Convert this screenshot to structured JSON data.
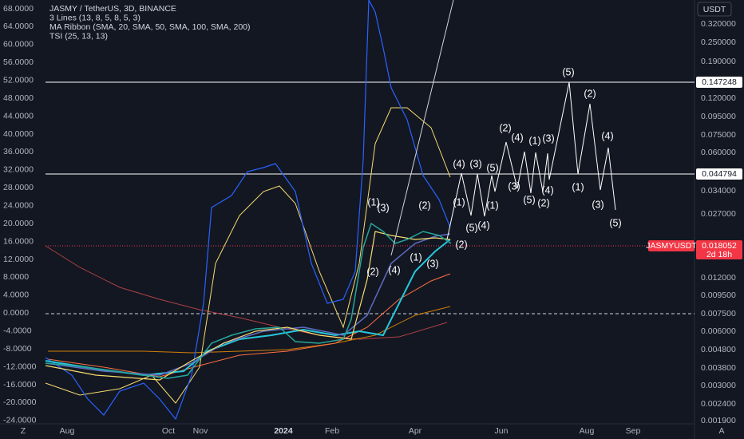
{
  "legend": [
    "JASMY / TetherUS, 3D, BINANCE",
    "3 Lines (13, 8, 5, 8, 5, 3)",
    "MA Ribbon (SMA, 20, SMA, 50, SMA, 100, SMA, 200)",
    "TSI (25, 13, 13)"
  ],
  "left_axis": [
    "68.0000",
    "64.0000",
    "60.0000",
    "56.0000",
    "52.0000",
    "48.0000",
    "44.0000",
    "40.0000",
    "36.0000",
    "32.0000",
    "28.0000",
    "24.0000",
    "20.0000",
    "16.0000",
    "12.0000",
    "8.0000",
    "4.0000",
    "0.0000",
    "-4.0000",
    "-8.0000",
    "-12.0000",
    "-16.0000",
    "-20.0000",
    "-24.0000"
  ],
  "right_axis": {
    "currency": "USDT",
    "labels": [
      "0.320000",
      "0.250000",
      "0.190000",
      "0.120000",
      "0.095000",
      "0.075000",
      "0.060000",
      "0.034000",
      "0.027000",
      "0.012000",
      "0.009500",
      "0.007500",
      "0.006000",
      "0.004800",
      "0.003800",
      "0.003000",
      "0.002400",
      "0.001900"
    ],
    "level_high": "0.147248",
    "level_low": "0.044794",
    "symbol": "JASMYUSDT",
    "price": "0.018052",
    "countdown": "2d 18h"
  },
  "time_axis": [
    "Aug",
    "Oct",
    "Nov",
    "2024",
    "Feb",
    "Apr",
    "Jun",
    "Aug",
    "Sep"
  ],
  "wave_labels": [
    "(1)",
    "(3)",
    "(2)",
    "(4)",
    "(2)",
    "(1)",
    "(3)",
    "(4)",
    "(3)",
    "(5)",
    "(1)",
    "(5)",
    "(4)",
    "(1)",
    "(2)",
    "(2)",
    "(4)",
    "(1)",
    "(3)",
    "(3)",
    "(5)",
    "(4)",
    "(2)",
    "(5)",
    "(2)",
    "(4)",
    "(1)",
    "(3)",
    "(5)"
  ]
}
